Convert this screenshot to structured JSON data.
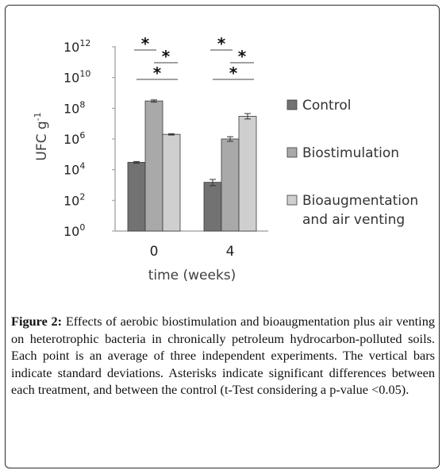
{
  "chart_data": {
    "type": "bar",
    "categories": [
      "0",
      "4"
    ],
    "xlabel": "time (weeks)",
    "ylabel_base": "UFC g",
    "ylabel_sup": "-1",
    "yscale": "log10",
    "ylim_exp": [
      0,
      12
    ],
    "y_ticks": [
      {
        "base": "10",
        "exp": "0"
      },
      {
        "base": "10",
        "exp": "2"
      },
      {
        "base": "10",
        "exp": "4"
      },
      {
        "base": "10",
        "exp": "6"
      },
      {
        "base": "10",
        "exp": "8"
      },
      {
        "base": "10",
        "exp": "10"
      },
      {
        "base": "10",
        "exp": "12"
      }
    ],
    "series": [
      {
        "name": "Control",
        "color": "#727272",
        "values": [
          30000,
          1500
        ],
        "err_low": [
          26000,
          900
        ],
        "err_high": [
          34000,
          2300
        ]
      },
      {
        "name": "Biostimulation",
        "color": "#a9a9a9",
        "values": [
          300000000,
          1000000
        ],
        "err_low": [
          250000000,
          700000
        ],
        "err_high": [
          350000000,
          1400000
        ]
      },
      {
        "name": "Bioaugmentation and air venting",
        "color": "#cfcfcf",
        "values": [
          2000000,
          30000000
        ],
        "err_low": [
          1800000,
          20000000
        ],
        "err_high": [
          2200000,
          45000000
        ]
      }
    ],
    "legend_lines": [
      [
        "Control"
      ],
      [
        "Biostimulation"
      ],
      [
        "Bioaugmentation",
        "and air venting"
      ]
    ],
    "legend_position": "right",
    "grid": false,
    "significance": [
      {
        "label": "*",
        "category": "0",
        "from_series": 0,
        "to_series": 1
      },
      {
        "label": "*",
        "category": "0",
        "from_series": 1,
        "to_series": 2
      },
      {
        "label": "*",
        "category": "0",
        "from_series": 0,
        "to_series": 2
      },
      {
        "label": "*",
        "category": "4",
        "from_series": 0,
        "to_series": 1
      },
      {
        "label": "*",
        "category": "4",
        "from_series": 1,
        "to_series": 2
      },
      {
        "label": "*",
        "category": "4",
        "from_series": 0,
        "to_series": 2
      }
    ]
  },
  "caption": {
    "label": "Figure 2:",
    "text": "Effects of aerobic biostimulation and bioaugmentation plus air venting on heterotrophic bacteria in chronically petroleum hydrocarbon-polluted soils. Each point is an average of three independent experiments. The vertical bars indicate standard deviations. Asterisks indicate significant differences between each treatment, and between the control (t-Test considering a p-value <0.05)."
  }
}
